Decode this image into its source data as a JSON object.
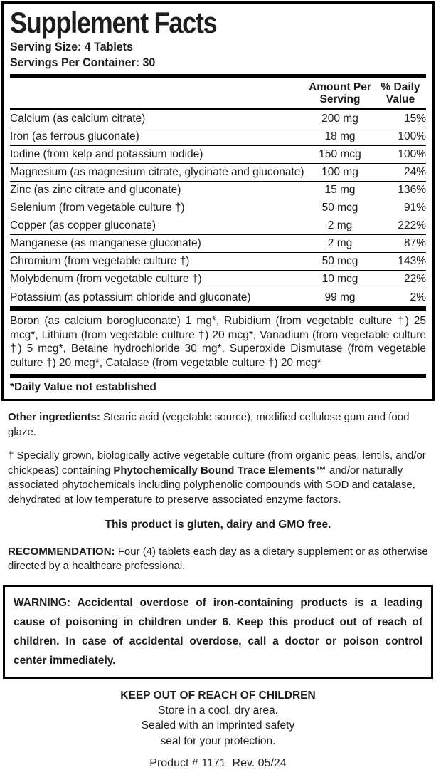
{
  "panel": {
    "title": "Supplement Facts",
    "serving_size": "Serving Size: 4 Tablets",
    "servings_per_container": "Servings Per Container: 30",
    "header": {
      "amount_line1": "Amount Per",
      "amount_line2": "Serving",
      "dv_line1": "% Daily",
      "dv_line2": "Value"
    },
    "rows": [
      {
        "name": "Calcium (as calcium citrate)",
        "amount": "200 mg",
        "dv": "15%"
      },
      {
        "name": "Iron (as ferrous gluconate)",
        "amount": "18 mg",
        "dv": "100%"
      },
      {
        "name": "Iodine (from kelp and potassium iodide)",
        "amount": "150 mcg",
        "dv": "100%"
      },
      {
        "name": "Magnesium (as magnesium citrate, glycinate and gluconate)",
        "amount": "100 mg",
        "dv": "24%"
      },
      {
        "name": "Zinc (as zinc citrate and gluconate)",
        "amount": "15 mg",
        "dv": "136%"
      },
      {
        "name": "Selenium (from vegetable culture †)",
        "amount": "50 mcg",
        "dv": "91%"
      },
      {
        "name": "Copper (as copper gluconate)",
        "amount": "2 mg",
        "dv": "222%"
      },
      {
        "name": "Manganese (as manganese gluconate)",
        "amount": "2 mg",
        "dv": "87%"
      },
      {
        "name": "Chromium (from vegetable culture †)",
        "amount": "50 mcg",
        "dv": "143%"
      },
      {
        "name": "Molybdenum (from vegetable culture †)",
        "amount": "10 mcg",
        "dv": "22%"
      },
      {
        "name": "Potassium (as potassium chloride and gluconate)",
        "amount": "99 mg",
        "dv": "2%"
      }
    ],
    "other_minerals": "Boron (as calcium borogluconate) 1 mg*, Rubidium (from vegetable culture †) 25 mcg*, Lithium (from vegetable culture †) 20 mcg*, Vanadium (from vegetable culture †) 5 mcg*, Betaine hydrochloride 30 mg*, Superoxide Dismutase (from vegetable culture †) 20 mcg*, Catalase (from vegetable culture †) 20 mcg*",
    "footnote": "*Daily Value not established"
  },
  "info": {
    "other_ingredients_label": "Other ingredients:",
    "other_ingredients_text": " Stearic acid (vegetable source), modified cellulose gum and food glaze.",
    "culture_note_pre": "† Specially grown, biologically active vegetable culture (from organic peas, lentils, and/or chickpeas) containing ",
    "culture_note_bold": "Phytochemically Bound Trace Elements™",
    "culture_note_post": " and/or naturally associated phytochemicals including polyphenolic compounds with SOD and catalase, dehydrated at low temperature to preserve associated enzyme factors.",
    "free_claim": "This product is gluten, dairy and GMO free.",
    "recommendation_label": "RECOMMENDATION:",
    "recommendation_text": " Four (4) tablets each day as a dietary supplement or as otherwise directed by a healthcare professional.",
    "warning_text": "WARNING: Accidental overdose of iron-containing products is a leading cause of poisoning in children under 6. Keep this product out of reach of children. In case of accidental overdose, call a doctor or poison control center immediately.",
    "keep_out": "KEEP OUT OF REACH OF CHILDREN",
    "storage_line1": "Store in a cool, dry area.",
    "storage_line2": "Sealed with an imprinted safety",
    "storage_line3": "seal for your protection.",
    "product_code": "Product # 1171  Rev. 05/24"
  },
  "colors": {
    "background": "#ffffff",
    "text": "#1d1d1b",
    "rule": "#000000"
  }
}
